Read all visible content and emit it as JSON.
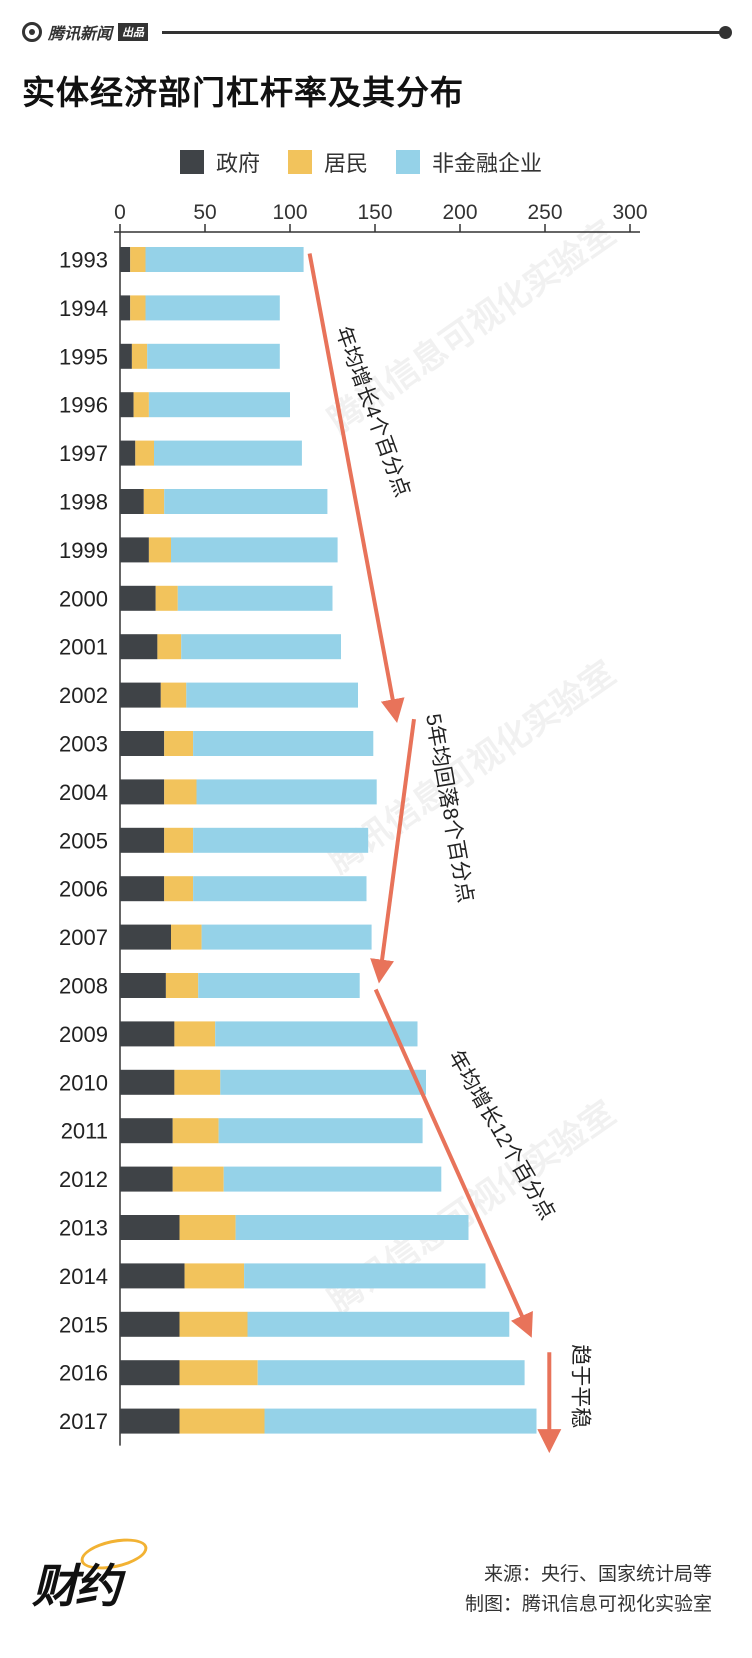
{
  "header": {
    "brand": "腾讯新闻",
    "brand_tag": "出品"
  },
  "title": "实体经济部门杠杆率及其分布",
  "legend": [
    {
      "label": "政府",
      "color": "#3f4347"
    },
    {
      "label": "居民",
      "color": "#f2c35c"
    },
    {
      "label": "非金融企业",
      "color": "#95d2e8"
    }
  ],
  "chart_data": {
    "type": "bar",
    "orientation": "horizontal",
    "stacked": true,
    "categories": [
      "1993",
      "1994",
      "1995",
      "1996",
      "1997",
      "1998",
      "1999",
      "2000",
      "2001",
      "2002",
      "2003",
      "2004",
      "2005",
      "2006",
      "2007",
      "2008",
      "2009",
      "2010",
      "2011",
      "2012",
      "2013",
      "2014",
      "2015",
      "2016",
      "2017"
    ],
    "series": [
      {
        "name": "政府",
        "values": [
          6,
          6,
          7,
          8,
          9,
          14,
          17,
          21,
          22,
          24,
          26,
          26,
          26,
          26,
          30,
          27,
          32,
          32,
          31,
          31,
          35,
          38,
          35,
          35,
          35
        ]
      },
      {
        "name": "居民",
        "values": [
          9,
          9,
          9,
          9,
          11,
          12,
          13,
          13,
          14,
          15,
          17,
          19,
          17,
          17,
          18,
          19,
          24,
          27,
          27,
          30,
          33,
          35,
          40,
          46,
          50
        ]
      },
      {
        "name": "非金融企业",
        "values": [
          93,
          79,
          78,
          83,
          87,
          96,
          98,
          91,
          94,
          101,
          106,
          106,
          103,
          102,
          100,
          95,
          119,
          121,
          120,
          128,
          137,
          142,
          154,
          157,
          160
        ]
      }
    ],
    "xlim": [
      0,
      300
    ],
    "xticks": [
      0,
      50,
      100,
      150,
      200,
      250,
      300
    ],
    "annotations": [
      {
        "text": "年均增长4个百分点"
      },
      {
        "text": "5年均回落8个百分点"
      },
      {
        "text": "年均增长12个百分点"
      },
      {
        "text": "趋于平稳"
      }
    ],
    "arrow_color": "#e8735a"
  },
  "footer": {
    "source": "来源：央行、国家统计局等",
    "credit": "制图：腾讯信息可视化实验室",
    "logo": "财约"
  },
  "watermark": "腾讯信息可视化实验室"
}
